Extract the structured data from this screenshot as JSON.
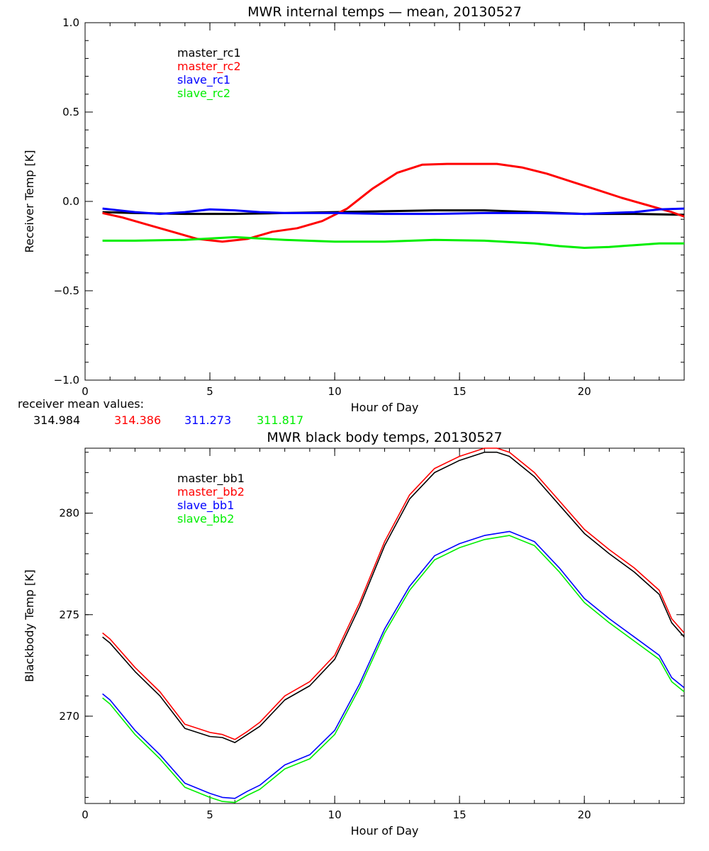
{
  "chart_data": [
    {
      "type": "line",
      "title": "MWR internal temps — mean, 20130527",
      "xlabel": "Hour of Day",
      "ylabel": "Receiver Temp [K]",
      "xlim": [
        0,
        24
      ],
      "ylim": [
        -1.0,
        1.0
      ],
      "xticks": [
        0,
        5,
        10,
        15,
        20
      ],
      "xticklabels": [
        "0",
        "5",
        "10",
        "15",
        "20"
      ],
      "yticks": [
        -1.0,
        -0.5,
        0.0,
        0.5,
        1.0
      ],
      "yticklabels": [
        "−1.0",
        "−0.5",
        "0.0",
        "0.5",
        "1.0"
      ],
      "x_minor_step": 1,
      "y_minor_step": 0.1,
      "grid": false,
      "legend_position": "top-left",
      "series": [
        {
          "name": "master_rc1",
          "color": "#000000",
          "x": [
            0.7,
            2,
            4,
            6,
            8,
            10,
            12,
            14,
            16,
            18,
            20,
            22,
            24
          ],
          "y": [
            -0.06,
            -0.065,
            -0.07,
            -0.07,
            -0.065,
            -0.06,
            -0.055,
            -0.05,
            -0.05,
            -0.06,
            -0.07,
            -0.07,
            -0.075
          ]
        },
        {
          "name": "master_rc2",
          "color": "#ff0000",
          "x": [
            0.7,
            1.5,
            2.5,
            3.5,
            4.5,
            5.5,
            6.5,
            7.5,
            8.5,
            9.5,
            10.5,
            11.5,
            12.5,
            13.5,
            14.5,
            15.5,
            16.5,
            17.5,
            18.5,
            19.5,
            20.5,
            21.5,
            22.5,
            23.5,
            24
          ],
          "y": [
            -0.065,
            -0.09,
            -0.13,
            -0.17,
            -0.21,
            -0.225,
            -0.21,
            -0.17,
            -0.15,
            -0.11,
            -0.04,
            0.07,
            0.16,
            0.205,
            0.21,
            0.21,
            0.21,
            0.19,
            0.155,
            0.11,
            0.065,
            0.02,
            -0.02,
            -0.06,
            -0.085
          ]
        },
        {
          "name": "slave_rc1",
          "color": "#0000ff",
          "x": [
            0.7,
            2,
            3,
            4,
            5,
            6,
            7,
            8,
            10,
            12,
            14,
            16,
            18,
            20,
            22,
            23,
            24
          ],
          "y": [
            -0.04,
            -0.06,
            -0.07,
            -0.06,
            -0.045,
            -0.05,
            -0.06,
            -0.065,
            -0.065,
            -0.07,
            -0.07,
            -0.065,
            -0.065,
            -0.07,
            -0.06,
            -0.045,
            -0.04
          ]
        },
        {
          "name": "slave_rc2",
          "color": "#00ee00",
          "x": [
            0.7,
            2,
            4,
            6,
            8,
            10,
            12,
            14,
            16,
            18,
            19,
            20,
            21,
            22,
            23,
            24
          ],
          "y": [
            -0.22,
            -0.22,
            -0.215,
            -0.2,
            -0.215,
            -0.225,
            -0.225,
            -0.215,
            -0.22,
            -0.235,
            -0.25,
            -0.26,
            -0.255,
            -0.245,
            -0.235,
            -0.235
          ]
        }
      ]
    },
    {
      "type": "line",
      "title": "MWR black body temps, 20130527",
      "xlabel": "Hour of Day",
      "ylabel": "Blackbody Temp [K]",
      "xlim": [
        0,
        24
      ],
      "ylim": [
        265.7,
        283.2
      ],
      "xticks": [
        0,
        5,
        10,
        15,
        20
      ],
      "xticklabels": [
        "0",
        "5",
        "10",
        "15",
        "20"
      ],
      "yticks": [
        270,
        275,
        280
      ],
      "yticklabels": [
        "270",
        "275",
        "280"
      ],
      "x_minor_step": 1,
      "y_minor_step": 1,
      "grid": false,
      "legend_position": "top-left",
      "series": [
        {
          "name": "master_bb1",
          "color": "#000000",
          "x": [
            0.7,
            1,
            2,
            3,
            4,
            5,
            5.5,
            6,
            6.5,
            7,
            8,
            9,
            10,
            11,
            12,
            13,
            14,
            15,
            16,
            16.5,
            17,
            18,
            19,
            20,
            21,
            22,
            23,
            23.5,
            24
          ],
          "y": [
            273.9,
            273.6,
            272.2,
            271.0,
            269.4,
            269.0,
            268.95,
            268.7,
            269.1,
            269.5,
            270.8,
            271.5,
            272.8,
            275.4,
            278.4,
            280.7,
            282.0,
            282.6,
            283.0,
            283.0,
            282.8,
            281.8,
            280.4,
            279.0,
            278.0,
            277.1,
            276.0,
            274.6,
            273.9
          ]
        },
        {
          "name": "master_bb2",
          "color": "#ff0000",
          "x": [
            0.7,
            1,
            2,
            3,
            4,
            5,
            5.5,
            6,
            6.5,
            7,
            8,
            9,
            10,
            11,
            12,
            13,
            14,
            15,
            16,
            16.5,
            17,
            18,
            19,
            20,
            21,
            22,
            23,
            23.5,
            24
          ],
          "y": [
            274.1,
            273.8,
            272.4,
            271.2,
            269.6,
            269.2,
            269.1,
            268.85,
            269.25,
            269.7,
            271.0,
            271.7,
            273.0,
            275.6,
            278.6,
            280.9,
            282.2,
            282.8,
            283.2,
            283.2,
            283.0,
            282.0,
            280.6,
            279.2,
            278.2,
            277.3,
            276.2,
            274.8,
            274.1
          ]
        },
        {
          "name": "slave_bb1",
          "color": "#0000ff",
          "x": [
            0.7,
            1,
            2,
            3,
            4,
            5,
            5.5,
            6,
            6.5,
            7,
            8,
            9,
            10,
            11,
            12,
            13,
            14,
            15,
            16,
            17,
            18,
            19,
            20,
            21,
            22,
            23,
            23.5,
            24
          ],
          "y": [
            271.1,
            270.8,
            269.3,
            268.1,
            266.7,
            266.2,
            266.0,
            265.95,
            266.3,
            266.6,
            267.6,
            268.1,
            269.3,
            271.6,
            274.3,
            276.4,
            277.9,
            278.5,
            278.9,
            279.1,
            278.6,
            277.3,
            275.8,
            274.8,
            273.9,
            273.0,
            271.9,
            271.4
          ]
        },
        {
          "name": "slave_bb2",
          "color": "#00ee00",
          "x": [
            0.7,
            1,
            2,
            3,
            4,
            5,
            5.5,
            6,
            6.5,
            7,
            8,
            9,
            10,
            11,
            12,
            13,
            14,
            15,
            16,
            17,
            18,
            19,
            20,
            21,
            22,
            23,
            23.5,
            24
          ],
          "y": [
            270.9,
            270.6,
            269.1,
            267.9,
            266.5,
            266.0,
            265.8,
            265.75,
            266.1,
            266.4,
            267.4,
            267.9,
            269.1,
            271.4,
            274.1,
            276.2,
            277.7,
            278.3,
            278.7,
            278.9,
            278.4,
            277.1,
            275.6,
            274.6,
            273.7,
            272.8,
            271.7,
            271.2
          ]
        }
      ]
    }
  ],
  "receiver_means": {
    "label": "receiver mean values:",
    "values": [
      {
        "text": "314.984",
        "color": "#000000"
      },
      {
        "text": "314.386",
        "color": "#ff0000"
      },
      {
        "text": "311.273",
        "color": "#0000ff"
      },
      {
        "text": "311.817",
        "color": "#00ee00"
      }
    ]
  }
}
